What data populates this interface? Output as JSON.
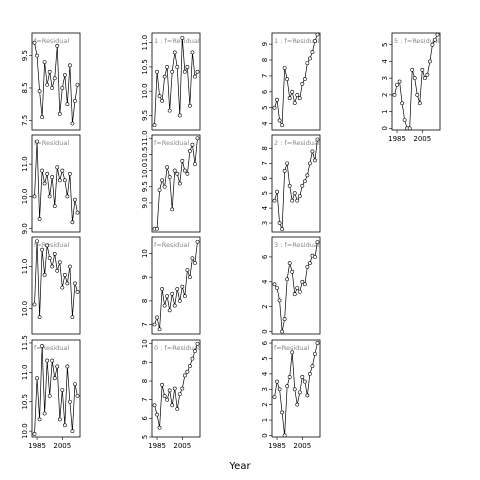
{
  "x_label": "Year",
  "chart_data": [
    {
      "type": "line",
      "title": "f=Residual",
      "x": [
        1983,
        1985,
        1987,
        1989,
        1991,
        1993,
        1995,
        1997,
        1999,
        2001,
        2003,
        2005,
        2007,
        2009,
        2011,
        2013,
        2015,
        2017
      ],
      "xlim": [
        1981,
        2019
      ],
      "ylim": [
        7.2,
        10.2
      ],
      "yticks": [
        7.5,
        8.5,
        9.5
      ],
      "values": [
        9.9,
        9.5,
        8.4,
        7.6,
        9.3,
        8.6,
        9.0,
        8.5,
        8.8,
        9.8,
        7.7,
        8.5,
        8.9,
        8.0,
        9.2,
        7.4,
        8.1,
        8.6
      ]
    },
    {
      "type": "line",
      "title": "f=Residual",
      "x": [
        1983,
        1985,
        1987,
        1989,
        1991,
        1993,
        1995,
        1997,
        1999,
        2001,
        2003,
        2005,
        2007,
        2009,
        2011,
        2013,
        2015,
        2017
      ],
      "xlim": [
        1981,
        2019
      ],
      "ylim": [
        8.9,
        11.9
      ],
      "yticks": [
        {
          "value": 9,
          "label": "9.0"
        },
        {
          "value": 10,
          "label": "10.0"
        },
        {
          "value": 11,
          "label": "11.0"
        }
      ],
      "values": [
        10.0,
        11.7,
        9.3,
        10.8,
        10.4,
        10.7,
        10.0,
        10.6,
        9.7,
        10.9,
        10.5,
        10.8,
        10.5,
        10.0,
        10.7,
        9.2,
        9.9,
        9.5
      ]
    },
    {
      "type": "line",
      "title": "f=Residual",
      "x": [
        1983,
        1985,
        1987,
        1989,
        1991,
        1993,
        1995,
        1997,
        1999,
        2001,
        2003,
        2005,
        2007,
        2009,
        2011,
        2013,
        2015,
        2017
      ],
      "xlim": [
        1981,
        2019
      ],
      "ylim": [
        9.4,
        11.7
      ],
      "yticks": [
        {
          "value": 10,
          "label": "10.0"
        },
        {
          "value": 11,
          "label": "11.0"
        }
      ],
      "values": [
        10.1,
        11.6,
        9.8,
        11.4,
        10.8,
        11.5,
        11.2,
        11.0,
        11.3,
        10.9,
        11.1,
        10.5,
        10.8,
        10.6,
        11.0,
        9.8,
        10.6,
        10.4
      ]
    },
    {
      "type": "line",
      "title": "f=Residual",
      "x": [
        1983,
        1985,
        1987,
        1989,
        1991,
        1993,
        1995,
        1997,
        1999,
        2001,
        2003,
        2005,
        2007,
        2009,
        2011,
        2013,
        2015,
        2017
      ],
      "xlim": [
        1981,
        2019
      ],
      "xticks": [
        1985,
        2005
      ],
      "ylim": [
        9.9,
        11.55
      ],
      "yticks": [
        {
          "value": 10,
          "label": "10.0"
        },
        10.5,
        {
          "value": 11,
          "label": "11.0"
        },
        11.5
      ],
      "values": [
        9.95,
        10.9,
        10.2,
        11.45,
        10.3,
        11.2,
        10.6,
        11.2,
        10.9,
        11.1,
        10.2,
        10.7,
        10.1,
        11.1,
        10.5,
        10.0,
        10.8,
        10.6
      ]
    },
    {
      "type": "line",
      "title": "1 : f=Residual",
      "x": [
        1983,
        1985,
        1987,
        1989,
        1991,
        1993,
        1995,
        1997,
        1999,
        2001,
        2003,
        2005,
        2007,
        2009,
        2011,
        2013,
        2015,
        2017
      ],
      "xlim": [
        1981,
        2019
      ],
      "ylim": [
        9.2,
        11.2
      ],
      "yticks": [
        9.5,
        {
          "value": 10,
          "label": "10.0"
        },
        10.5,
        {
          "value": 11,
          "label": "11.0"
        }
      ],
      "values": [
        9.3,
        10.4,
        9.9,
        9.8,
        10.3,
        10.5,
        9.6,
        10.4,
        10.8,
        10.5,
        9.5,
        11.1,
        10.4,
        10.5,
        9.7,
        10.8,
        10.3,
        10.4
      ]
    },
    {
      "type": "line",
      "title": "f=Residual",
      "x": [
        1983,
        1985,
        1987,
        1989,
        1991,
        1993,
        1995,
        1997,
        1999,
        2001,
        2003,
        2005,
        2007,
        2009,
        2011,
        2013,
        2015,
        2017
      ],
      "xlim": [
        1981,
        2019
      ],
      "ylim": [
        8.1,
        11.1
      ],
      "yticks": [
        {
          "value": 9,
          "label": "9.0"
        },
        9.5,
        {
          "value": 10,
          "label": "10.0"
        },
        10.5,
        {
          "value": 11,
          "label": "11.0"
        }
      ],
      "values": [
        8.2,
        8.2,
        9.4,
        9.7,
        9.5,
        10.1,
        9.8,
        8.8,
        10.0,
        9.9,
        9.6,
        10.3,
        10.0,
        9.9,
        10.6,
        10.8,
        10.2,
        11.0
      ]
    },
    {
      "type": "line",
      "title": "f=Residual",
      "x": [
        1983,
        1985,
        1987,
        1989,
        1991,
        1993,
        1995,
        1997,
        1999,
        2001,
        2003,
        2005,
        2007,
        2009,
        2011,
        2013,
        2015,
        2017
      ],
      "xlim": [
        1981,
        2019
      ],
      "ylim": [
        6.6,
        10.7
      ],
      "yticks": [
        7,
        8,
        9,
        10
      ],
      "values": [
        7.0,
        7.3,
        6.8,
        8.5,
        7.8,
        8.2,
        7.6,
        8.3,
        7.8,
        8.5,
        8.0,
        8.6,
        8.2,
        9.3,
        9.0,
        9.8,
        9.6,
        10.5
      ]
    },
    {
      "type": "line",
      "title": "0 : f=Residual",
      "x": [
        1983,
        1985,
        1987,
        1989,
        1991,
        1993,
        1995,
        1997,
        1999,
        2001,
        2003,
        2005,
        2007,
        2009,
        2011,
        2013,
        2015,
        2017
      ],
      "xlim": [
        1981,
        2019
      ],
      "xticks": [
        1985,
        2005
      ],
      "ylim": [
        5,
        10.2
      ],
      "yticks": [
        5,
        6,
        7,
        8,
        9,
        10
      ],
      "values": [
        6.7,
        6.2,
        5.5,
        7.8,
        7.2,
        7.0,
        7.5,
        6.7,
        7.6,
        6.5,
        7.3,
        7.6,
        8.3,
        8.5,
        8.8,
        9.2,
        9.6,
        10.0
      ]
    },
    {
      "type": "line",
      "title": "1 : f=Residual",
      "x": [
        1983,
        1985,
        1987,
        1989,
        1991,
        1993,
        1995,
        1997,
        1999,
        2001,
        2003,
        2005,
        2007,
        2009,
        2011,
        2013,
        2015,
        2017
      ],
      "xlim": [
        1981,
        2019
      ],
      "ylim": [
        3.6,
        9.7
      ],
      "yticks": [
        4,
        5,
        6,
        7,
        8,
        9
      ],
      "values": [
        5.0,
        5.5,
        4.2,
        3.9,
        7.5,
        6.8,
        5.6,
        6.0,
        5.3,
        5.8,
        5.6,
        6.5,
        6.8,
        7.8,
        8.1,
        8.5,
        9.2,
        9.6
      ]
    },
    {
      "type": "line",
      "title": "2 : f=Residual",
      "x": [
        1983,
        1985,
        1987,
        1989,
        1991,
        1993,
        1995,
        1997,
        1999,
        2001,
        2003,
        2005,
        2007,
        2009,
        2011,
        2013,
        2015,
        2017
      ],
      "xlim": [
        1981,
        2019
      ],
      "ylim": [
        2.4,
        8.9
      ],
      "yticks": [
        3,
        4,
        5,
        6,
        7,
        8
      ],
      "values": [
        4.5,
        5.1,
        3.0,
        2.6,
        6.5,
        7.0,
        5.5,
        4.5,
        5.0,
        4.5,
        4.8,
        5.5,
        5.8,
        6.2,
        7.0,
        7.8,
        7.2,
        8.6
      ]
    },
    {
      "type": "line",
      "title": "3 : f=Residual",
      "x": [
        1983,
        1985,
        1987,
        1989,
        1991,
        1993,
        1995,
        1997,
        1999,
        2001,
        2003,
        2005,
        2007,
        2009,
        2011,
        2013,
        2015,
        2017
      ],
      "xlim": [
        1981,
        2019
      ],
      "ylim": [
        -0.2,
        7.6
      ],
      "yticks": [
        0,
        2,
        4,
        6
      ],
      "values": [
        3.8,
        3.5,
        2.5,
        0.0,
        1.0,
        4.2,
        5.5,
        4.8,
        3.0,
        3.5,
        3.2,
        4.0,
        3.8,
        5.2,
        5.5,
        6.1,
        6.0,
        7.2
      ]
    },
    {
      "type": "line",
      "title": "f=Residual",
      "x": [
        1983,
        1985,
        1987,
        1989,
        1991,
        1993,
        1995,
        1997,
        1999,
        2001,
        2003,
        2005,
        2007,
        2009,
        2011,
        2013,
        2015,
        2017
      ],
      "xlim": [
        1981,
        2019
      ],
      "xticks": [
        1985,
        2005
      ],
      "ylim": [
        -0.1,
        6.2
      ],
      "yticks": [
        0,
        1,
        2,
        3,
        4,
        5,
        6
      ],
      "values": [
        2.5,
        3.5,
        3.0,
        1.5,
        0.0,
        3.2,
        3.8,
        5.4,
        3.0,
        2.0,
        2.8,
        3.8,
        3.5,
        2.6,
        4.0,
        4.5,
        5.3,
        6.0
      ]
    },
    {
      "type": "line",
      "title": "5 : f=Residual",
      "x": [
        1983,
        1985,
        1987,
        1989,
        1991,
        1993,
        1995,
        1997,
        1999,
        2001,
        2003,
        2005,
        2007,
        2009,
        2011,
        2013,
        2015,
        2017
      ],
      "xlim": [
        1981,
        2019
      ],
      "xticks": [
        1985,
        2005
      ],
      "ylim": [
        -0.1,
        5.7
      ],
      "yticks": [
        0,
        1,
        2,
        3,
        4,
        5
      ],
      "values": [
        2.0,
        2.6,
        2.8,
        1.5,
        0.5,
        0.0,
        0.0,
        3.5,
        3.0,
        2.0,
        1.5,
        3.5,
        3.0,
        3.2,
        4.0,
        5.0,
        5.3,
        5.6
      ]
    }
  ]
}
